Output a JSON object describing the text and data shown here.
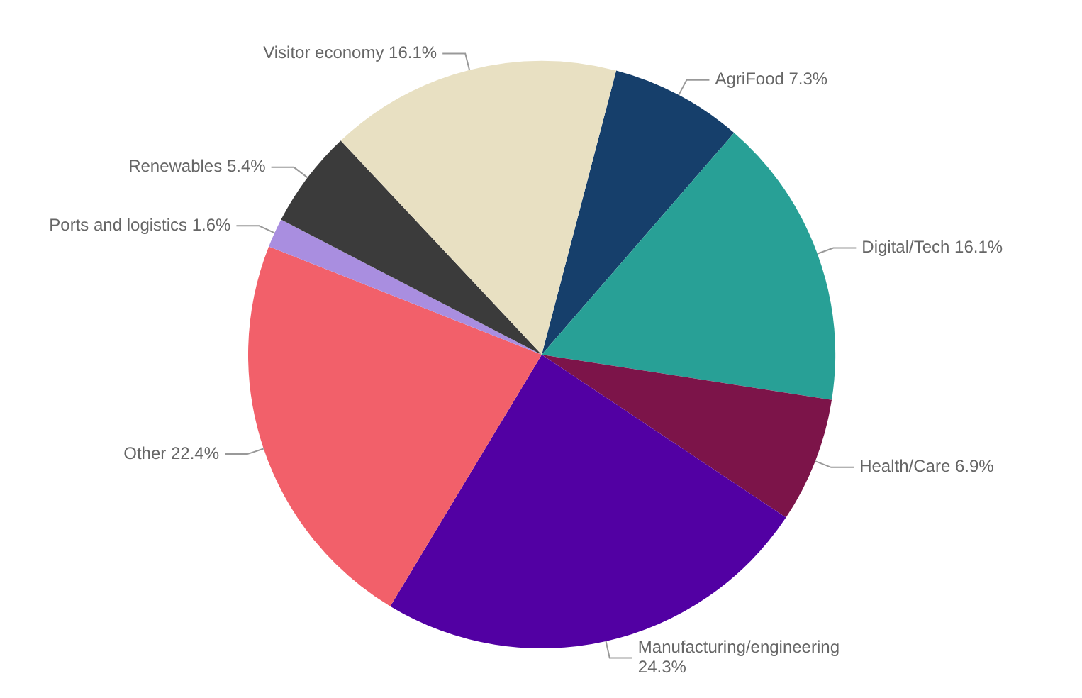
{
  "chart_data": {
    "type": "pie",
    "categories": [
      "AgriFood",
      "Digital/Tech",
      "Health/Care",
      "Manufacturing/engineering",
      "Other",
      "Ports and logistics",
      "Renewables",
      "Visitor economy"
    ],
    "values": [
      7.3,
      16.1,
      6.9,
      24.3,
      22.4,
      1.6,
      5.4,
      16.1
    ],
    "colors": [
      "#163f6b",
      "#28a096",
      "#7c1449",
      "#5200a3",
      "#f2606a",
      "#a98ee0",
      "#3b3b3b",
      "#e8e0c2"
    ],
    "value_labels": [
      "7.3%",
      "16.1%",
      "6.9%",
      "24.3%",
      "22.4%",
      "1.6%",
      "5.4%",
      "16.1%"
    ]
  }
}
